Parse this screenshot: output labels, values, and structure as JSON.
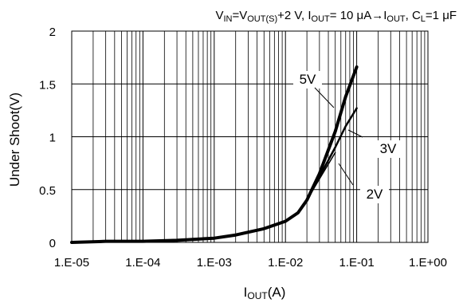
{
  "chart_data": {
    "type": "line",
    "title": {
      "parts": [
        "V",
        "IN",
        "=V",
        "OUT(S)",
        "+2 V, I",
        "OUT",
        "= 10 μA→I",
        "OUT",
        ", C",
        "L",
        "=1 μF"
      ]
    },
    "xlabel": {
      "main": "I",
      "sub": "OUT",
      "unit": "(A)"
    },
    "ylabel": "Under Shoot(V)",
    "x_scale": "log",
    "xlim": [
      1e-05,
      1
    ],
    "ylim": [
      0,
      2
    ],
    "x_ticks": [
      {
        "value": 1e-05,
        "label": "1.E-05"
      },
      {
        "value": 0.0001,
        "label": "1.E-04"
      },
      {
        "value": 0.001,
        "label": "1.E-03"
      },
      {
        "value": 0.01,
        "label": "1.E-02"
      },
      {
        "value": 0.1,
        "label": "1.E-01"
      },
      {
        "value": 1,
        "label": "1.E+00"
      }
    ],
    "y_ticks": [
      {
        "value": 0,
        "label": "0"
      },
      {
        "value": 0.5,
        "label": "0.5"
      },
      {
        "value": 1,
        "label": "1"
      },
      {
        "value": 1.5,
        "label": "1.5"
      },
      {
        "value": 2,
        "label": "2"
      }
    ],
    "grid": true,
    "legend": "none",
    "series": [
      {
        "name": "5V",
        "x": [
          1e-05,
          3e-05,
          0.0001,
          0.0003,
          0.001,
          0.002,
          0.005,
          0.01,
          0.015,
          0.02,
          0.03,
          0.05,
          0.07,
          0.1
        ],
        "y": [
          0.0,
          0.01,
          0.01,
          0.02,
          0.04,
          0.07,
          0.13,
          0.2,
          0.28,
          0.4,
          0.65,
          1.05,
          1.38,
          1.66
        ]
      },
      {
        "name": "3V",
        "x": [
          1e-05,
          3e-05,
          0.0001,
          0.0003,
          0.001,
          0.002,
          0.005,
          0.01,
          0.015,
          0.02,
          0.03,
          0.05,
          0.07,
          0.1
        ],
        "y": [
          0.0,
          0.01,
          0.01,
          0.02,
          0.04,
          0.07,
          0.13,
          0.2,
          0.28,
          0.4,
          0.62,
          0.9,
          1.1,
          1.27
        ]
      },
      {
        "name": "2V",
        "x": [
          1e-05,
          3e-05,
          0.0001,
          0.0003,
          0.001,
          0.002,
          0.005,
          0.01,
          0.015,
          0.02,
          0.03,
          0.05
        ],
        "y": [
          0.0,
          0.01,
          0.01,
          0.02,
          0.04,
          0.07,
          0.13,
          0.2,
          0.28,
          0.4,
          0.6,
          0.85
        ]
      }
    ],
    "annotations": [
      {
        "text": "5V",
        "series": "5V"
      },
      {
        "text": "3V",
        "series": "3V"
      },
      {
        "text": "2V",
        "series": "2V"
      }
    ],
    "colors": {
      "line": "#000000",
      "grid": "#000000",
      "background": "#ffffff"
    }
  }
}
